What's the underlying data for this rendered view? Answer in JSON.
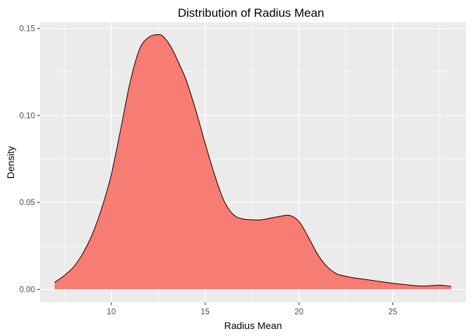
{
  "chart_data": {
    "type": "area",
    "title": "Distribution of Radius Mean",
    "xlabel": "Radius Mean",
    "ylabel": "Density",
    "xlim": [
      6.2,
      28.9
    ],
    "ylim": [
      -0.0075,
      0.1535
    ],
    "x_ticks": [
      10,
      15,
      20,
      25
    ],
    "x_tick_labels": [
      "10",
      "15",
      "20",
      "25"
    ],
    "y_ticks": [
      0.0,
      0.05,
      0.1,
      0.15
    ],
    "y_tick_labels": [
      "0.00",
      "0.05",
      "0.10",
      "0.15"
    ],
    "grid": true,
    "legend": "none",
    "colors": {
      "panel": "#ebebeb",
      "grid": "#ffffff",
      "fill": "#f8766d",
      "outline": "#000000"
    },
    "series": [
      {
        "x": [
          6.98,
          7.5,
          8.0,
          8.5,
          9.0,
          9.5,
          10.0,
          10.5,
          11.0,
          11.5,
          12.0,
          12.5,
          12.8,
          13.2,
          13.6,
          14.0,
          14.5,
          15.0,
          15.5,
          16.0,
          16.5,
          17.0,
          17.5,
          18.0,
          18.5,
          19.0,
          19.5,
          20.0,
          20.5,
          21.0,
          21.5,
          22.0,
          22.5,
          23.0,
          24.0,
          25.0,
          26.0,
          26.5,
          27.0,
          27.5,
          28.11
        ],
        "y": [
          0.004,
          0.008,
          0.013,
          0.021,
          0.032,
          0.047,
          0.066,
          0.092,
          0.119,
          0.138,
          0.145,
          0.1465,
          0.145,
          0.139,
          0.13,
          0.12,
          0.103,
          0.084,
          0.066,
          0.051,
          0.043,
          0.0405,
          0.04,
          0.04,
          0.041,
          0.042,
          0.0425,
          0.039,
          0.03,
          0.02,
          0.013,
          0.009,
          0.0075,
          0.0065,
          0.005,
          0.0035,
          0.0023,
          0.0019,
          0.0021,
          0.0024,
          0.0017
        ]
      }
    ]
  }
}
